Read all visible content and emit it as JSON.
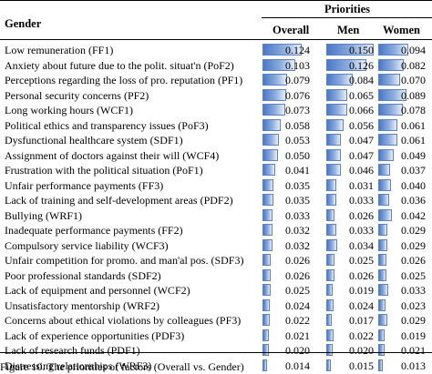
{
  "header": {
    "gender": "Gender",
    "priorities": "Priorities",
    "overall": "Overall",
    "men": "Men",
    "women": "Women"
  },
  "colors": {
    "bar": "#5b83c4"
  },
  "max_value": 0.15,
  "rows": [
    {
      "label": "Low remuneration (FF1)",
      "overall": "0.124",
      "men": "0.150",
      "women": "0.094"
    },
    {
      "label": "Anxiety about future due to the polit. situat'n (PoF2)",
      "overall": "0.103",
      "men": "0.126",
      "women": "0.082"
    },
    {
      "label": "Perceptions regarding the loss of pro. reputation (PF1)",
      "overall": "0.079",
      "men": "0.084",
      "women": "0.070"
    },
    {
      "label": "Personal security concerns (PF2)",
      "overall": "0.076",
      "men": "0.065",
      "women": "0.089"
    },
    {
      "label": "Long working hours (WCF1)",
      "overall": "0.073",
      "men": "0.066",
      "women": "0.078"
    },
    {
      "label": "Political ethics and transparency issues (PoF3)",
      "overall": "0.058",
      "men": "0.056",
      "women": "0.061"
    },
    {
      "label": "Dysfunctional healthcare system (SDF1)",
      "overall": "0.053",
      "men": "0.047",
      "women": "0.061"
    },
    {
      "label": "Assignment of doctors against their will (WCF4)",
      "overall": "0.050",
      "men": "0.047",
      "women": "0.049"
    },
    {
      "label": "Frustration with the political situation (PoF1)",
      "overall": "0.041",
      "men": "0.046",
      "women": "0.037"
    },
    {
      "label": "Unfair performance payments (FF3)",
      "overall": "0.035",
      "men": "0.031",
      "women": "0.040"
    },
    {
      "label": "Lack of training and self-development areas (PDF2)",
      "overall": "0.035",
      "men": "0.033",
      "women": "0.036"
    },
    {
      "label": "Bullying (WRF1)",
      "overall": "0.033",
      "men": "0.026",
      "women": "0.042"
    },
    {
      "label": "Inadequate performance payments (FF2)",
      "overall": "0.032",
      "men": "0.033",
      "women": "0.029"
    },
    {
      "label": "Compulsory service liability (WCF3)",
      "overall": "0.032",
      "men": "0.034",
      "women": "0.029"
    },
    {
      "label": "Unfair competition for promo. and man'al pos. (SDF3)",
      "overall": "0.026",
      "men": "0.025",
      "women": "0.026"
    },
    {
      "label": "Poor professional standards (SDF2)",
      "overall": "0.026",
      "men": "0.026",
      "women": "0.025"
    },
    {
      "label": "Lack of equipment and personnel (WCF2)",
      "overall": "0.025",
      "men": "0.019",
      "women": "0.033"
    },
    {
      "label": "Unsatisfactory mentorship (WRF2)",
      "overall": "0.024",
      "men": "0.024",
      "women": "0.023"
    },
    {
      "label": "Concerns about ethical violations by colleagues (PF3)",
      "overall": "0.022",
      "men": "0.017",
      "women": "0.029"
    },
    {
      "label": "Lack of experience opportunities (PDF3)",
      "overall": "0.021",
      "men": "0.022",
      "women": "0.019"
    },
    {
      "label": "Lack of research funds (PDF1)",
      "overall": "0.020",
      "men": "0.020",
      "women": "0.021"
    },
    {
      "label": "Distressing relationships (WRF3)",
      "overall": "0.014",
      "men": "0.015",
      "women": "0.013"
    }
  ],
  "caption": "Figure 10. The priorities of factors (Overall vs. Gender)"
}
